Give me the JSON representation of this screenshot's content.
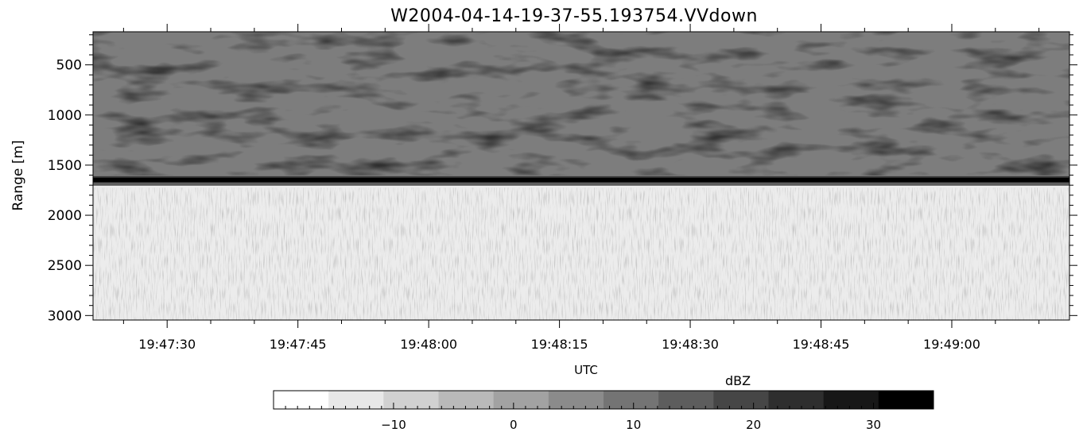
{
  "chart_data": [
    {
      "type": "heatmap",
      "title": "W2004-04-14-19-37-55.193754.VVdown",
      "xlabel": "UTC",
      "ylabel": "Range [m]",
      "x_tick_labels": [
        "19:47:30",
        "19:47:45",
        "19:48:00",
        "19:48:15",
        "19:48:30",
        "19:48:45",
        "19:49:00"
      ],
      "x_tick_seconds": [
        0,
        15,
        30,
        45,
        60,
        75,
        90
      ],
      "xlim_seconds": [
        -8.5,
        103.5
      ],
      "y_tick_labels": [
        "500",
        "1000",
        "1500",
        "2000",
        "2500",
        "3000"
      ],
      "y_tick_values": [
        500,
        1000,
        1500,
        2000,
        2500,
        3000
      ],
      "ylim": [
        3045,
        170
      ],
      "y_inverted": true,
      "grid": false,
      "structure": {
        "echo_top_range": 170,
        "echo_bottom_range": 1620,
        "strong_layer_range": 1650,
        "echo_dbz_range": [
          3,
          13
        ],
        "layer_peak_dbz": 35,
        "below_layer_dbz": -16
      }
    },
    {
      "type": "colorbar",
      "title": "dBZ",
      "min": -20,
      "max": 35,
      "step": 5,
      "tick_values": [
        -10,
        0,
        10,
        20,
        30
      ],
      "tick_labels": [
        "−10",
        "0",
        "10",
        "20",
        "30"
      ],
      "color_low": "#ffffff",
      "color_high": "#000000"
    }
  ]
}
